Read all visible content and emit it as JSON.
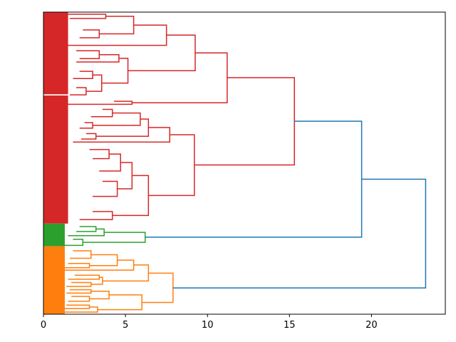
{
  "chart_data": {
    "type": "dendrogram",
    "orientation": "right",
    "title": "",
    "xlabel": "",
    "ylabel": "",
    "xlim": [
      0,
      24.5
    ],
    "leaf_axis_range": [
      0,
      1000
    ],
    "xticks": [
      0,
      5,
      10,
      15,
      20
    ],
    "xtick_labels": [
      "0",
      "5",
      "10",
      "15",
      "20"
    ],
    "colors": {
      "red": "#d62728",
      "green": "#2ca02c",
      "orange": "#ff7f0e",
      "blue": "#1f77b4"
    },
    "leaf_clusters": [
      {
        "color": "red",
        "span": [
          0,
          272
        ],
        "depth": 1.5
      },
      {
        "color": "red",
        "span": [
          276,
          700
        ],
        "depth": 1.5
      },
      {
        "color": "green",
        "span": [
          700,
          775
        ],
        "depth": 1.3
      },
      {
        "color": "orange",
        "span": [
          775,
          1000
        ],
        "depth": 1.3
      }
    ],
    "links": [
      {
        "u": [
          7,
          21
        ],
        "d": [
          1.5,
          1.6
        ],
        "h": 3.8,
        "color": "red"
      },
      {
        "u": [
          59,
          85
        ],
        "d": [
          2.4,
          2.2
        ],
        "h": 3.4,
        "color": "red"
      },
      {
        "u": [
          14,
          72
        ],
        "d": [
          3.8,
          3.4
        ],
        "h": 5.5,
        "color": "red"
      },
      {
        "u": [
          43,
          110
        ],
        "d": [
          5.5,
          1.0
        ],
        "h": 7.5,
        "color": "red"
      },
      {
        "u": [
          128,
          154
        ],
        "d": [
          2.0,
          2.2
        ],
        "h": 3.4,
        "color": "red"
      },
      {
        "u": [
          141,
          165
        ],
        "d": [
          3.4,
          2.0
        ],
        "h": 4.6,
        "color": "red"
      },
      {
        "u": [
          196,
          220
        ],
        "d": [
          2.2,
          1.8
        ],
        "h": 3.0,
        "color": "red"
      },
      {
        "u": [
          250,
          274
        ],
        "d": [
          2.0,
          1.6
        ],
        "h": 2.6,
        "color": "red"
      },
      {
        "u": [
          208,
          262
        ],
        "d": [
          3.0,
          2.6
        ],
        "h": 3.55,
        "color": "red"
      },
      {
        "u": [
          153,
          235
        ],
        "d": [
          4.6,
          3.55
        ],
        "h": 5.15,
        "color": "red"
      },
      {
        "u": [
          76,
          194
        ],
        "d": [
          7.5,
          5.15
        ],
        "h": 9.25,
        "color": "red"
      },
      {
        "u": [
          295,
          305
        ],
        "d": [
          4.3,
          0.5
        ],
        "h": 5.4,
        "color": "red"
      },
      {
        "u": [
          135,
          300
        ],
        "d": [
          9.25,
          5.4
        ],
        "h": 11.2,
        "color": "red"
      },
      {
        "u": [
          322,
          346
        ],
        "d": [
          3.6,
          2.9
        ],
        "h": 4.2,
        "color": "red"
      },
      {
        "u": [
          366,
          384
        ],
        "d": [
          2.5,
          2.2
        ],
        "h": 3.0,
        "color": "red"
      },
      {
        "u": [
          334,
          375
        ],
        "d": [
          4.2,
          3.0
        ],
        "h": 5.9,
        "color": "red"
      },
      {
        "u": [
          402,
          420
        ],
        "d": [
          2.6,
          2.3
        ],
        "h": 3.2,
        "color": "red"
      },
      {
        "u": [
          354,
          411
        ],
        "d": [
          5.9,
          3.2
        ],
        "h": 6.4,
        "color": "red"
      },
      {
        "u": [
          382,
          430
        ],
        "d": [
          6.4,
          1.8
        ],
        "h": 7.7,
        "color": "red"
      },
      {
        "u": [
          455,
          485
        ],
        "d": [
          2.8,
          3.0
        ],
        "h": 4.0,
        "color": "red"
      },
      {
        "u": [
          470,
          526
        ],
        "d": [
          4.0,
          3.4
        ],
        "h": 4.7,
        "color": "red"
      },
      {
        "u": [
          560,
          610
        ],
        "d": [
          3.6,
          3.0
        ],
        "h": 4.5,
        "color": "red"
      },
      {
        "u": [
          498,
          585
        ],
        "d": [
          4.7,
          4.5
        ],
        "h": 5.4,
        "color": "red"
      },
      {
        "u": [
          660,
          687
        ],
        "d": [
          3.0,
          2.2
        ],
        "h": 4.2,
        "color": "red"
      },
      {
        "u": [
          541,
          673
        ],
        "d": [
          5.4,
          4.2
        ],
        "h": 6.4,
        "color": "red"
      },
      {
        "u": [
          406,
          607
        ],
        "d": [
          7.7,
          6.4
        ],
        "h": 9.2,
        "color": "red"
      },
      {
        "u": [
          217,
          506
        ],
        "d": [
          11.2,
          9.2
        ],
        "h": 15.3,
        "color": "red"
      },
      {
        "u": [
          710,
          726
        ],
        "d": [
          2.2,
          2.0
        ],
        "h": 3.2,
        "color": "green"
      },
      {
        "u": [
          718,
          740
        ],
        "d": [
          3.2,
          1.5
        ],
        "h": 3.7,
        "color": "green"
      },
      {
        "u": [
          752,
          772
        ],
        "d": [
          1.8,
          1.2
        ],
        "h": 2.4,
        "color": "green"
      },
      {
        "u": [
          729,
          762
        ],
        "d": [
          3.7,
          2.4
        ],
        "h": 6.2,
        "color": "green"
      },
      {
        "u": [
          790,
          815
        ],
        "d": [
          1.8,
          1.6
        ],
        "h": 2.9,
        "color": "orange"
      },
      {
        "u": [
          832,
          846
        ],
        "d": [
          1.5,
          1.3
        ],
        "h": 2.8,
        "color": "orange"
      },
      {
        "u": [
          803,
          839
        ],
        "d": [
          2.9,
          2.8
        ],
        "h": 4.5,
        "color": "orange"
      },
      {
        "u": [
          821,
          854
        ],
        "d": [
          4.5,
          1.2
        ],
        "h": 5.5,
        "color": "orange"
      },
      {
        "u": [
          871,
          884
        ],
        "d": [
          1.9,
          1.5
        ],
        "h": 3.4,
        "color": "orange"
      },
      {
        "u": [
          895,
          908
        ],
        "d": [
          1.7,
          1.4
        ],
        "h": 2.9,
        "color": "orange"
      },
      {
        "u": [
          878,
          901
        ],
        "d": [
          3.4,
          2.9
        ],
        "h": 3.6,
        "color": "orange"
      },
      {
        "u": [
          837,
          890
        ],
        "d": [
          5.5,
          3.6
        ],
        "h": 6.4,
        "color": "orange"
      },
      {
        "u": [
          919,
          930
        ],
        "d": [
          1.6,
          1.4
        ],
        "h": 2.9,
        "color": "orange"
      },
      {
        "u": [
          941,
          957
        ],
        "d": [
          1.7,
          1.5
        ],
        "h": 2.8,
        "color": "orange"
      },
      {
        "u": [
          924,
          949
        ],
        "d": [
          2.9,
          2.8
        ],
        "h": 4.0,
        "color": "orange"
      },
      {
        "u": [
          970,
          981
        ],
        "d": [
          1.4,
          1.2
        ],
        "h": 2.8,
        "color": "orange"
      },
      {
        "u": [
          976,
          993
        ],
        "d": [
          2.8,
          0.9
        ],
        "h": 3.3,
        "color": "orange"
      },
      {
        "u": [
          936,
          985
        ],
        "d": [
          4.0,
          3.3
        ],
        "h": 6.0,
        "color": "orange"
      },
      {
        "u": [
          864,
          961
        ],
        "d": [
          6.4,
          6.0
        ],
        "h": 7.9,
        "color": "orange"
      },
      {
        "u": [
          361,
          745
        ],
        "d": [
          15.3,
          6.2
        ],
        "h": 19.4,
        "color": "blue"
      },
      {
        "u": [
          553,
          913
        ],
        "d": [
          19.4,
          7.9
        ],
        "h": 23.3,
        "color": "blue"
      }
    ]
  }
}
